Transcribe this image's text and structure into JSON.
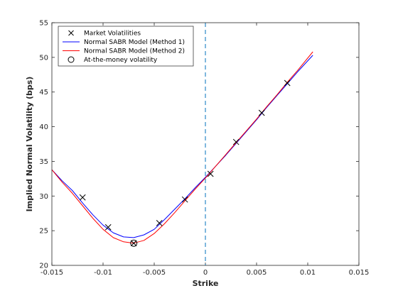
{
  "chart_data": {
    "type": "line",
    "title": "",
    "xlabel": "Strike",
    "ylabel": "Implied Normal Volatility (bps)",
    "xlim": [
      -0.015,
      0.015
    ],
    "ylim": [
      20,
      55
    ],
    "x_ticks": [
      -0.015,
      -0.01,
      -0.005,
      0,
      0.005,
      0.01,
      0.015
    ],
    "x_tick_labels": [
      "-0.015",
      "-0.01",
      "-0.005",
      "0",
      "0.005",
      "0.01",
      "0.015"
    ],
    "y_ticks": [
      20,
      25,
      30,
      35,
      40,
      45,
      50,
      55
    ],
    "y_tick_labels": [
      "20",
      "25",
      "30",
      "35",
      "40",
      "45",
      "50",
      "55"
    ],
    "grid": false,
    "legend_position": "top-left",
    "vertical_line": {
      "x": 0,
      "style": "dashed",
      "color": "#0072BD"
    },
    "series": [
      {
        "name": "Market Volatilities",
        "kind": "markers",
        "marker": "x",
        "color": "#000000",
        "x": [
          -0.012,
          -0.0095,
          -0.007,
          -0.0045,
          -0.002,
          0.0005,
          0.003,
          0.0055,
          0.008
        ],
        "y": [
          29.8,
          25.5,
          23.2,
          26.1,
          29.5,
          33.2,
          37.8,
          42.0,
          46.3
        ]
      },
      {
        "name": "Normal SABR Model (Method 1)",
        "kind": "line",
        "color": "#0000ff",
        "x": [
          -0.015,
          -0.014,
          -0.013,
          -0.012,
          -0.011,
          -0.01,
          -0.009,
          -0.008,
          -0.007,
          -0.006,
          -0.005,
          -0.004,
          -0.003,
          -0.002,
          -0.001,
          0,
          0.001,
          0.002,
          0.003,
          0.004,
          0.005,
          0.006,
          0.007,
          0.008,
          0.009,
          0.0105
        ],
        "y": [
          33.8,
          32.2,
          30.8,
          29.0,
          27.3,
          25.8,
          24.7,
          24.1,
          24.0,
          24.4,
          25.2,
          26.6,
          28.1,
          29.6,
          31.2,
          32.7,
          34.3,
          35.9,
          37.6,
          39.3,
          41.0,
          42.8,
          44.5,
          46.2,
          47.9,
          50.3
        ]
      },
      {
        "name": "Normal SABR Model (Method 2)",
        "kind": "line",
        "color": "#ff0000",
        "x": [
          -0.015,
          -0.014,
          -0.013,
          -0.012,
          -0.011,
          -0.01,
          -0.009,
          -0.008,
          -0.007,
          -0.006,
          -0.005,
          -0.004,
          -0.003,
          -0.002,
          -0.001,
          0,
          0.001,
          0.002,
          0.003,
          0.004,
          0.005,
          0.006,
          0.007,
          0.008,
          0.009,
          0.0105
        ],
        "y": [
          33.8,
          32.0,
          30.4,
          28.6,
          26.8,
          25.2,
          24.0,
          23.4,
          23.2,
          23.6,
          24.6,
          26.0,
          27.6,
          29.3,
          31.0,
          32.6,
          34.3,
          36.0,
          37.7,
          39.4,
          41.1,
          42.9,
          44.6,
          46.4,
          48.1,
          50.8
        ]
      },
      {
        "name": "At-the-money volatility",
        "kind": "markers",
        "marker": "circle",
        "color": "#000000",
        "x": [
          -0.007
        ],
        "y": [
          23.2
        ]
      }
    ]
  }
}
